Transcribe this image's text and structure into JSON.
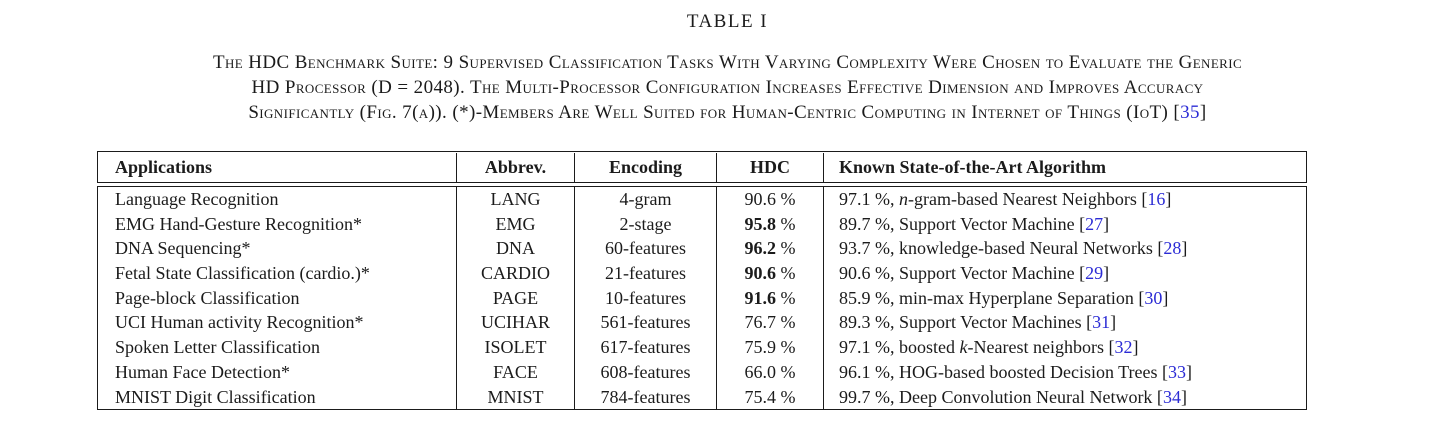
{
  "title": "TABLE I",
  "caption": {
    "line1": "The HDC Benchmark Suite: 9 Supervised Classification Tasks With Varying Complexity Were Chosen to Evaluate the Generic",
    "line2": "HD Processor (D = 2048). The Multi-Processor Configuration Increases Effective Dimension and Improves Accuracy",
    "line3_pre": "Significantly (Fig. 7(a)). (*)-Members Are Well Suited for Human-Centric Computing in Internet of Things (IoT) [",
    "line3_cite": "35",
    "line3_end": "]"
  },
  "colors": {
    "citation_blue": "#2b2bd5",
    "text": "#1b1b1b",
    "background": "#ffffff"
  },
  "table": {
    "headers": {
      "applications": "Applications",
      "abbrev": "Abbrev.",
      "encoding": "Encoding",
      "hdc": "HDC",
      "sota": "Known State-of-the-Art Algorithm"
    },
    "rows": [
      {
        "app": "Language Recognition",
        "abbrev": "LANG",
        "encoding": "4-gram",
        "hdc_bold": "",
        "hdc_norm": "90.6",
        "hdc_pct": " %",
        "sota_pre": "97.1 %, ",
        "sota_it": "n",
        "sota_mid": "-gram-based Nearest Neighbors [",
        "sota_cite": "16",
        "sota_end": "]"
      },
      {
        "app": "EMG Hand-Gesture Recognition*",
        "abbrev": "EMG",
        "encoding": "2-stage",
        "hdc_bold": "95.8",
        "hdc_norm": "",
        "hdc_pct": " %",
        "sota_pre": "89.7 %, Support Vector Machine [",
        "sota_it": "",
        "sota_mid": "",
        "sota_cite": "27",
        "sota_end": "]"
      },
      {
        "app": "DNA Sequencing*",
        "abbrev": "DNA",
        "encoding": "60-features",
        "hdc_bold": "96.2",
        "hdc_norm": "",
        "hdc_pct": " %",
        "sota_pre": "93.7 %, knowledge-based Neural Networks [",
        "sota_it": "",
        "sota_mid": "",
        "sota_cite": "28",
        "sota_end": "]"
      },
      {
        "app": "Fetal State Classification (cardio.)*",
        "abbrev": "CARDIO",
        "encoding": "21-features",
        "hdc_bold": "90.6",
        "hdc_norm": "",
        "hdc_pct": " %",
        "sota_pre": "90.6 %, Support Vector Machine [",
        "sota_it": "",
        "sota_mid": "",
        "sota_cite": "29",
        "sota_end": "]"
      },
      {
        "app": "Page-block Classification",
        "abbrev": "PAGE",
        "encoding": "10-features",
        "hdc_bold": "91.6",
        "hdc_norm": "",
        "hdc_pct": " %",
        "sota_pre": "85.9 %, min-max Hyperplane Separation [",
        "sota_it": "",
        "sota_mid": "",
        "sota_cite": "30",
        "sota_end": "]"
      },
      {
        "app": "UCI Human activity Recognition*",
        "abbrev": "UCIHAR",
        "encoding": "561-features",
        "hdc_bold": "",
        "hdc_norm": "76.7",
        "hdc_pct": " %",
        "sota_pre": "89.3 %, Support Vector Machines [",
        "sota_it": "",
        "sota_mid": "",
        "sota_cite": "31",
        "sota_end": "]"
      },
      {
        "app": "Spoken Letter Classification",
        "abbrev": "ISOLET",
        "encoding": "617-features",
        "hdc_bold": "",
        "hdc_norm": "75.9",
        "hdc_pct": " %",
        "sota_pre": "97.1 %, boosted ",
        "sota_it": "k",
        "sota_mid": "-Nearest neighbors [",
        "sota_cite": "32",
        "sota_end": "]"
      },
      {
        "app": "Human Face Detection*",
        "abbrev": "FACE",
        "encoding": "608-features",
        "hdc_bold": "",
        "hdc_norm": "66.0",
        "hdc_pct": " %",
        "sota_pre": "96.1 %, HOG-based boosted Decision Trees [",
        "sota_it": "",
        "sota_mid": "",
        "sota_cite": "33",
        "sota_end": "]"
      },
      {
        "app": "MNIST Digit Classification",
        "abbrev": "MNIST",
        "encoding": "784-features",
        "hdc_bold": "",
        "hdc_norm": "75.4",
        "hdc_pct": " %",
        "sota_pre": "99.7 %, Deep Convolution Neural Network [",
        "sota_it": "",
        "sota_mid": "",
        "sota_cite": "34",
        "sota_end": "]"
      }
    ]
  }
}
